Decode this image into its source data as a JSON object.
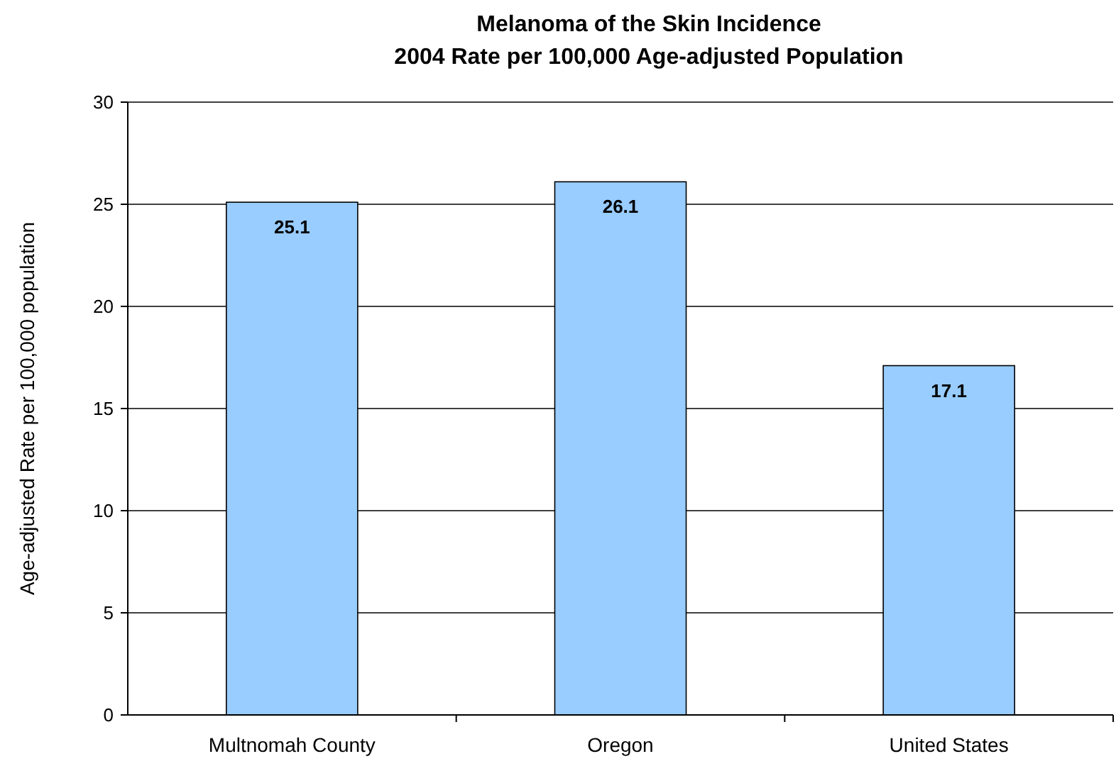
{
  "chart_data": {
    "type": "bar",
    "title": "Melanoma of the Skin Incidence\n2004 Rate per 100,000 Age-adjusted Population",
    "ylabel": "Age-adjusted Rate per 100,000 population",
    "categories": [
      "Multnomah County",
      "Oregon",
      "United States"
    ],
    "values": [
      25.1,
      26.1,
      17.1
    ],
    "color": "#99ccff",
    "ylim": [
      0,
      30
    ],
    "yticks": [
      0,
      5,
      10,
      15,
      20,
      25,
      30
    ],
    "grid": "y",
    "data_labels": true
  }
}
